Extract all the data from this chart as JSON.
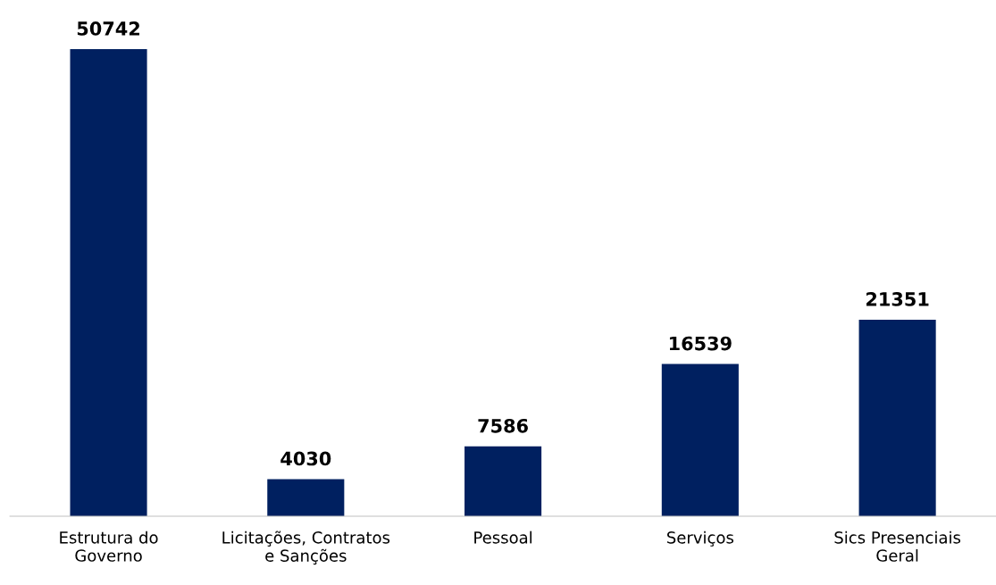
{
  "chart_data": {
    "type": "bar",
    "categories": [
      "Estrutura do\nGoverno",
      "Licitações, Contratos\ne Sanções",
      "Pessoal",
      "Serviços",
      "Sics Presenciais\nGeral"
    ],
    "values": [
      50742,
      4030,
      7586,
      16539,
      21351
    ],
    "color": "#002060",
    "data_labels": true,
    "tick_labels": "x",
    "grid": false,
    "legend": false
  }
}
